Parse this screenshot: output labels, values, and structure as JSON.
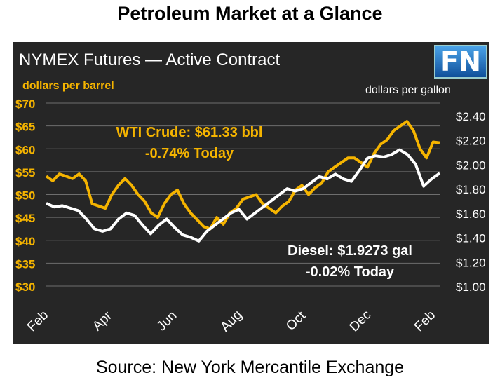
{
  "title": "Petroleum Market at a Glance",
  "source": "Source: New York Mercantile Exchange",
  "logo_text": "FN",
  "colors": {
    "wti": "#f5b400",
    "diesel": "#ffffff",
    "background": "#262626",
    "grid": "#6e6e6e"
  },
  "chart_data": {
    "type": "line",
    "title": "NYMEX Futures — Active Contract",
    "ylabel_left": "dollars per barrel",
    "ylabel_right": "dollars per gallon",
    "ylim_left": [
      30,
      70
    ],
    "ylim_right": [
      1.0,
      2.4
    ],
    "yticks_left": [
      "$70",
      "$65",
      "$60",
      "$55",
      "$50",
      "$45",
      "$40",
      "$35",
      "$30"
    ],
    "yticks_left_values": [
      70,
      65,
      60,
      55,
      50,
      45,
      40,
      35,
      30
    ],
    "yticks_right": [
      "$2.40",
      "$2.20",
      "$2.00",
      "$1.80",
      "$1.60",
      "$1.40",
      "$1.20",
      "$1.00"
    ],
    "yticks_right_values": [
      2.4,
      2.2,
      2.0,
      1.8,
      1.6,
      1.4,
      1.2,
      1.0
    ],
    "x_ticks": [
      "Feb",
      "Apr",
      "Jun",
      "Aug",
      "Oct",
      "Dec",
      "Feb"
    ],
    "grid": true,
    "series": [
      {
        "name": "WTI Crude",
        "axis": "left",
        "annotation": "WTI Crude: $61.33 bbl",
        "change": "-0.74% Today",
        "values": [
          54,
          53,
          54.5,
          54,
          53.5,
          54.5,
          53,
          48,
          47.5,
          47,
          50,
          52,
          53.5,
          52,
          50,
          48.5,
          46,
          45,
          48,
          50,
          51,
          48,
          46,
          44.5,
          43,
          42.5,
          45,
          43.5,
          46,
          47,
          49,
          49.5,
          50,
          48,
          47,
          46,
          47.5,
          48.5,
          51,
          52,
          50,
          51.5,
          52.5,
          55,
          56,
          57,
          58,
          58,
          57,
          56,
          59,
          61,
          62,
          64,
          65,
          66,
          64,
          60,
          58,
          61.5,
          61.33
        ]
      },
      {
        "name": "Diesel",
        "axis": "right",
        "annotation": "Diesel: $1.9273 gal",
        "change": "-0.02% Today",
        "values": [
          1.68,
          1.65,
          1.66,
          1.64,
          1.62,
          1.55,
          1.47,
          1.45,
          1.47,
          1.55,
          1.6,
          1.58,
          1.5,
          1.43,
          1.5,
          1.55,
          1.48,
          1.42,
          1.4,
          1.37,
          1.45,
          1.5,
          1.55,
          1.6,
          1.63,
          1.55,
          1.6,
          1.65,
          1.7,
          1.75,
          1.8,
          1.78,
          1.8,
          1.85,
          1.9,
          1.88,
          1.92,
          1.88,
          1.86,
          1.95,
          2.05,
          2.07,
          2.06,
          2.08,
          2.12,
          2.08,
          2.0,
          1.82,
          1.88,
          1.9273
        ]
      }
    ]
  }
}
